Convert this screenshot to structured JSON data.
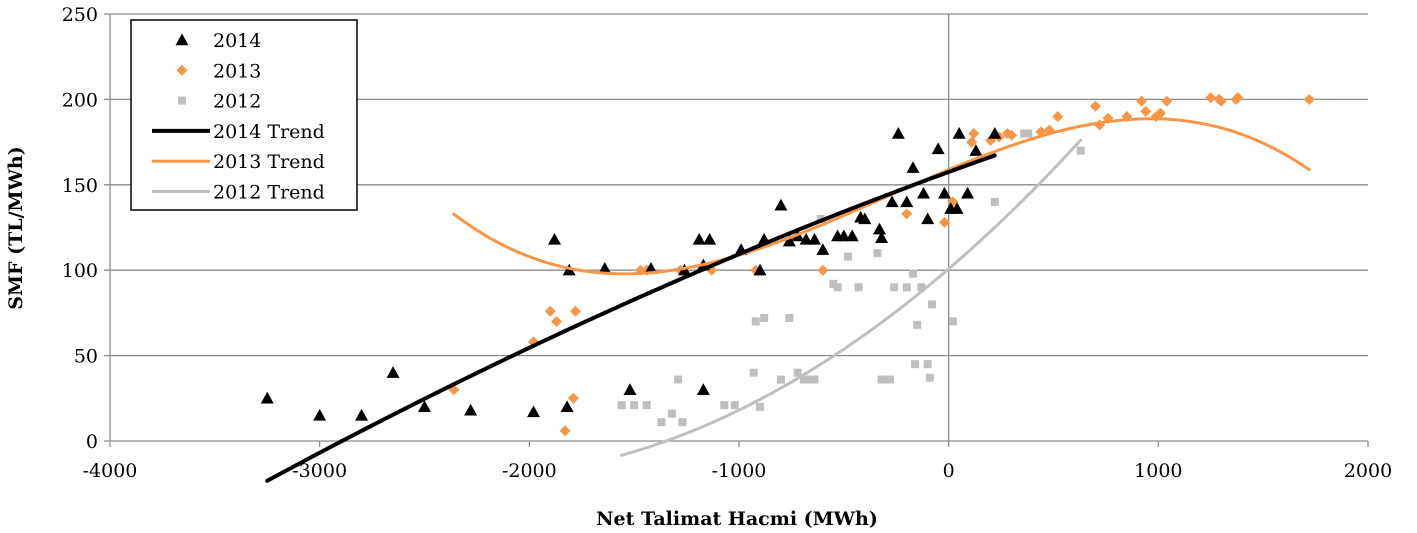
{
  "chart_data": {
    "type": "scatter",
    "xlabel": "Net Talimat Hacmi (MWh)",
    "ylabel": "SMF (TL/MWh)",
    "xlim": [
      -4000,
      2000
    ],
    "ylim": [
      0,
      250
    ],
    "x_ticks": [
      "-4000",
      "-3000",
      "-2000",
      "-1000",
      "0",
      "1000",
      "2000"
    ],
    "y_ticks": [
      "0",
      "50",
      "100",
      "150",
      "200",
      "250"
    ],
    "grid": "horizontal",
    "legend_position": "top-left",
    "series": [
      {
        "name": "2014",
        "marker": "triangle",
        "color": "#000000",
        "points": [
          [
            -3250,
            25
          ],
          [
            -3000,
            15
          ],
          [
            -2800,
            15
          ],
          [
            -2650,
            40
          ],
          [
            -2500,
            20
          ],
          [
            -2280,
            18
          ],
          [
            -1980,
            17
          ],
          [
            -1880,
            118
          ],
          [
            -1820,
            20
          ],
          [
            -1810,
            100
          ],
          [
            -1640,
            101
          ],
          [
            -1520,
            30
          ],
          [
            -1420,
            101
          ],
          [
            -1260,
            100
          ],
          [
            -1190,
            118
          ],
          [
            -1170,
            103
          ],
          [
            -1170,
            30
          ],
          [
            -1140,
            118
          ],
          [
            -990,
            112
          ],
          [
            -880,
            118
          ],
          [
            -900,
            100
          ],
          [
            -800,
            138
          ],
          [
            -760,
            117
          ],
          [
            -720,
            120
          ],
          [
            -680,
            118
          ],
          [
            -640,
            118
          ],
          [
            -600,
            112
          ],
          [
            -530,
            120
          ],
          [
            -500,
            120
          ],
          [
            -460,
            120
          ],
          [
            -420,
            131
          ],
          [
            -400,
            130
          ],
          [
            -330,
            124
          ],
          [
            -320,
            119
          ],
          [
            -270,
            140
          ],
          [
            -240,
            180
          ],
          [
            -200,
            140
          ],
          [
            -170,
            160
          ],
          [
            -120,
            145
          ],
          [
            -100,
            130
          ],
          [
            -50,
            171
          ],
          [
            -20,
            145
          ],
          [
            10,
            136
          ],
          [
            40,
            136
          ],
          [
            50,
            180
          ],
          [
            90,
            145
          ],
          [
            130,
            170
          ],
          [
            220,
            180
          ]
        ]
      },
      {
        "name": "2013",
        "marker": "diamond",
        "color": "#F79646",
        "points": [
          [
            -2360,
            30
          ],
          [
            -1980,
            58
          ],
          [
            -1900,
            76
          ],
          [
            -1870,
            70
          ],
          [
            -1830,
            6
          ],
          [
            -1790,
            25
          ],
          [
            -1780,
            76
          ],
          [
            -1470,
            100
          ],
          [
            -1440,
            100
          ],
          [
            -1280,
            100
          ],
          [
            -1130,
            100
          ],
          [
            -920,
            100
          ],
          [
            -600,
            100
          ],
          [
            -200,
            133
          ],
          [
            -20,
            128
          ],
          [
            20,
            140
          ],
          [
            110,
            175
          ],
          [
            120,
            180
          ],
          [
            200,
            176
          ],
          [
            240,
            178
          ],
          [
            280,
            180
          ],
          [
            300,
            179
          ],
          [
            440,
            181
          ],
          [
            480,
            182
          ],
          [
            520,
            190
          ],
          [
            700,
            196
          ],
          [
            720,
            185
          ],
          [
            760,
            189
          ],
          [
            850,
            190
          ],
          [
            920,
            199
          ],
          [
            940,
            193
          ],
          [
            990,
            190
          ],
          [
            1010,
            192
          ],
          [
            1040,
            199
          ],
          [
            1250,
            201
          ],
          [
            1290,
            200
          ],
          [
            1300,
            199
          ],
          [
            1370,
            200
          ],
          [
            1380,
            201
          ],
          [
            1720,
            200
          ]
        ]
      },
      {
        "name": "2012",
        "marker": "square",
        "color": "#BFBFBF",
        "points": [
          [
            -1560,
            21
          ],
          [
            -1500,
            21
          ],
          [
            -1440,
            21
          ],
          [
            -1370,
            11
          ],
          [
            -1320,
            16
          ],
          [
            -1290,
            36
          ],
          [
            -1270,
            11
          ],
          [
            -1070,
            21
          ],
          [
            -1020,
            21
          ],
          [
            -930,
            40
          ],
          [
            -900,
            20
          ],
          [
            -920,
            70
          ],
          [
            -880,
            72
          ],
          [
            -800,
            36
          ],
          [
            -760,
            72
          ],
          [
            -740,
            120
          ],
          [
            -720,
            40
          ],
          [
            -690,
            36
          ],
          [
            -670,
            36
          ],
          [
            -640,
            36
          ],
          [
            -610,
            130
          ],
          [
            -550,
            92
          ],
          [
            -530,
            90
          ],
          [
            -480,
            108
          ],
          [
            -430,
            90
          ],
          [
            -340,
            110
          ],
          [
            -320,
            36
          ],
          [
            -300,
            36
          ],
          [
            -280,
            36
          ],
          [
            -260,
            90
          ],
          [
            -200,
            90
          ],
          [
            -170,
            98
          ],
          [
            -160,
            45
          ],
          [
            -150,
            68
          ],
          [
            -130,
            90
          ],
          [
            -100,
            45
          ],
          [
            -80,
            80
          ],
          [
            -90,
            37
          ],
          [
            20,
            70
          ],
          [
            220,
            140
          ],
          [
            360,
            180
          ],
          [
            380,
            180
          ],
          [
            630,
            170
          ]
        ]
      }
    ],
    "trends": [
      {
        "name": "2014 Trend",
        "color": "#000000",
        "x_range": [
          -3250,
          220
        ],
        "coefficients": [
          157.5,
          0.0448,
          -3.33e-06
        ]
      },
      {
        "name": "2013 Trend",
        "color": "#F79646",
        "x_range": [
          -2360,
          1720
        ],
        "coefficients": [
          158.8,
          0.0514,
          -1.006e-05,
          -1.152e-08
        ]
      },
      {
        "name": "2012 Trend",
        "color": "#BFBFBF",
        "x_range": [
          -1560,
          630
        ],
        "coefficients": [
          100.8,
          0.1054,
          2.27e-05
        ]
      }
    ]
  }
}
